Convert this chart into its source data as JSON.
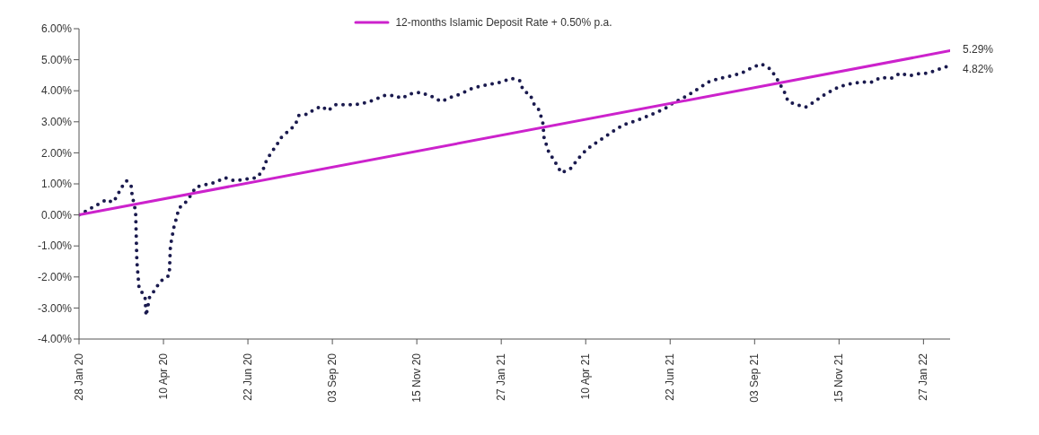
{
  "chart_data": {
    "type": "line",
    "legend": "top",
    "marker": "none",
    "xlim": [
      "2020-01-28",
      "2022-02-19"
    ],
    "xticks": [
      {
        "value": "2020-01-28",
        "label": "28 Jan 20"
      },
      {
        "value": "2020-04-10",
        "label": "10 Apr 20"
      },
      {
        "value": "2020-06-22",
        "label": "22 Jun 20"
      },
      {
        "value": "2020-09-03",
        "label": "03 Sep 20"
      },
      {
        "value": "2020-11-15",
        "label": "15 Nov 20"
      },
      {
        "value": "2021-01-27",
        "label": "27 Jan 21"
      },
      {
        "value": "2021-04-10",
        "label": "10 Apr 21"
      },
      {
        "value": "2021-06-22",
        "label": "22 Jun 21"
      },
      {
        "value": "2021-09-03",
        "label": "03 Sep 21"
      },
      {
        "value": "2021-11-15",
        "label": "15 Nov 21"
      },
      {
        "value": "2022-01-27",
        "label": "27 Jan 22"
      }
    ],
    "ylim": [
      -4,
      6
    ],
    "yticks": [
      {
        "value": -4,
        "label": "-4.00%"
      },
      {
        "value": -3,
        "label": "-3.00%"
      },
      {
        "value": -2,
        "label": "-2.00%"
      },
      {
        "value": -1,
        "label": "-1.00%"
      },
      {
        "value": 0,
        "label": "0.00%"
      },
      {
        "value": 1,
        "label": "1.00%"
      },
      {
        "value": 2,
        "label": "2.00%"
      },
      {
        "value": 3,
        "label": "3.00%"
      },
      {
        "value": 4,
        "label": "4.00%"
      },
      {
        "value": 5,
        "label": "5.00%"
      },
      {
        "value": 6,
        "label": "6.00%"
      }
    ],
    "series": [
      {
        "color": "#1a1a4e",
        "line_style": "dotted",
        "x": [
          "2020-01-28",
          "2020-02-14",
          "2020-02-21",
          "2020-02-26",
          "2020-03-01",
          "2020-03-04",
          "2020-03-09",
          "2020-03-13",
          "2020-03-14",
          "2020-03-16",
          "2020-03-17",
          "2020-03-18",
          "2020-03-20",
          "2020-03-25",
          "2020-03-26",
          "2020-03-29",
          "2020-04-03",
          "2020-04-07",
          "2020-04-15",
          "2020-04-16",
          "2020-04-19",
          "2020-04-22",
          "2020-04-23",
          "2020-04-29",
          "2020-05-04",
          "2020-05-08",
          "2020-05-25",
          "2020-06-02",
          "2020-06-10",
          "2020-06-30",
          "2020-07-05",
          "2020-07-08",
          "2020-07-12",
          "2020-07-16",
          "2020-07-21",
          "2020-07-27",
          "2020-08-02",
          "2020-08-05",
          "2020-08-13",
          "2020-08-18",
          "2020-08-25",
          "2020-08-30",
          "2020-09-06",
          "2020-09-14",
          "2020-09-22",
          "2020-09-30",
          "2020-10-09",
          "2020-10-18",
          "2020-10-27",
          "2020-11-02",
          "2020-11-09",
          "2020-11-18",
          "2020-11-29",
          "2020-12-06",
          "2020-12-15",
          "2020-12-23",
          "2020-12-31",
          "2021-01-09",
          "2021-01-16",
          "2021-01-27",
          "2021-02-05",
          "2021-02-12",
          "2021-02-15",
          "2021-02-21",
          "2021-02-24",
          "2021-03-01",
          "2021-03-04",
          "2021-03-05",
          "2021-03-09",
          "2021-03-14",
          "2021-03-20",
          "2021-03-28",
          "2021-04-02",
          "2021-04-07",
          "2021-04-14",
          "2021-04-22",
          "2021-04-30",
          "2021-05-07",
          "2021-05-14",
          "2021-05-24",
          "2021-06-01",
          "2021-06-10",
          "2021-06-17",
          "2021-06-25",
          "2021-07-03",
          "2021-07-11",
          "2021-07-18",
          "2021-07-25",
          "2021-08-04",
          "2021-08-14",
          "2021-08-23",
          "2021-09-01",
          "2021-09-09",
          "2021-09-17",
          "2021-09-23",
          "2021-09-29",
          "2021-10-02",
          "2021-10-10",
          "2021-10-17",
          "2021-10-25",
          "2021-10-31",
          "2021-11-07",
          "2021-11-15",
          "2021-11-24",
          "2021-12-04",
          "2021-12-14",
          "2021-12-21",
          "2021-12-30",
          "2022-01-07",
          "2022-01-14",
          "2022-01-23",
          "2022-01-31",
          "2022-02-09",
          "2022-02-19"
        ],
        "values": [
          0,
          0.35,
          0.5,
          0.4,
          0.6,
          0.85,
          1.1,
          0.95,
          0.6,
          0.3,
          0,
          -1.5,
          -2.4,
          -2.6,
          -3.25,
          -2.65,
          -2.4,
          -2.15,
          -1.95,
          -1,
          -0.4,
          0,
          0.2,
          0.4,
          0.65,
          0.9,
          1.05,
          1.2,
          1.1,
          1.2,
          1.45,
          1.75,
          2,
          2.2,
          2.5,
          2.7,
          2.9,
          3.2,
          3.25,
          3.4,
          3.5,
          3.35,
          3.55,
          3.55,
          3.55,
          3.6,
          3.7,
          3.85,
          3.85,
          3.75,
          3.9,
          3.95,
          3.8,
          3.65,
          3.8,
          3.9,
          4.05,
          4.15,
          4.2,
          4.28,
          4.4,
          4.32,
          4,
          3.88,
          3.59,
          3.36,
          2.95,
          2.49,
          2.03,
          1.74,
          1.35,
          1.5,
          1.74,
          1.97,
          2.2,
          2.4,
          2.6,
          2.78,
          2.92,
          3.04,
          3.16,
          3.3,
          3.41,
          3.62,
          3.76,
          3.94,
          4.11,
          4.28,
          4.4,
          4.48,
          4.57,
          4.75,
          4.86,
          4.69,
          4.34,
          3.94,
          3.65,
          3.55,
          3.47,
          3.65,
          3.82,
          3.97,
          4.13,
          4.22,
          4.28,
          4.28,
          4.43,
          4.4,
          4.57,
          4.48,
          4.55,
          4.57,
          4.69,
          4.82
        ],
        "value_labels": [
          null,
          null,
          null,
          null,
          null,
          null,
          null,
          null,
          null,
          null,
          null,
          null,
          null,
          null,
          null,
          null,
          null,
          null,
          null,
          null,
          null,
          null,
          null,
          null,
          null,
          null,
          null,
          null,
          null,
          null,
          null,
          null,
          null,
          null,
          null,
          null,
          null,
          null,
          null,
          null,
          null,
          null,
          null,
          null,
          null,
          null,
          null,
          null,
          null,
          null,
          null,
          null,
          null,
          null,
          null,
          null,
          null,
          null,
          null,
          null,
          null,
          null,
          null,
          null,
          null,
          null,
          null,
          null,
          null,
          null,
          null,
          null,
          null,
          null,
          null,
          null,
          null,
          null,
          null,
          null,
          null,
          null,
          null,
          null,
          null,
          null,
          null,
          null,
          null,
          null,
          null,
          null,
          null,
          null,
          null,
          null,
          null,
          null,
          null,
          null,
          null,
          null,
          null,
          null,
          null,
          null,
          null,
          null,
          null,
          null,
          null,
          null,
          null,
          "4.82%"
        ]
      },
      {
        "name": "12-months Islamic Deposit Rate + 0.50% p.a.",
        "color": "#cc22cc",
        "line_style": "solid",
        "x": [
          "2020-01-28",
          "2022-02-19"
        ],
        "values": [
          0,
          5.29
        ],
        "value_labels": [
          null,
          "5.29%"
        ]
      }
    ]
  }
}
